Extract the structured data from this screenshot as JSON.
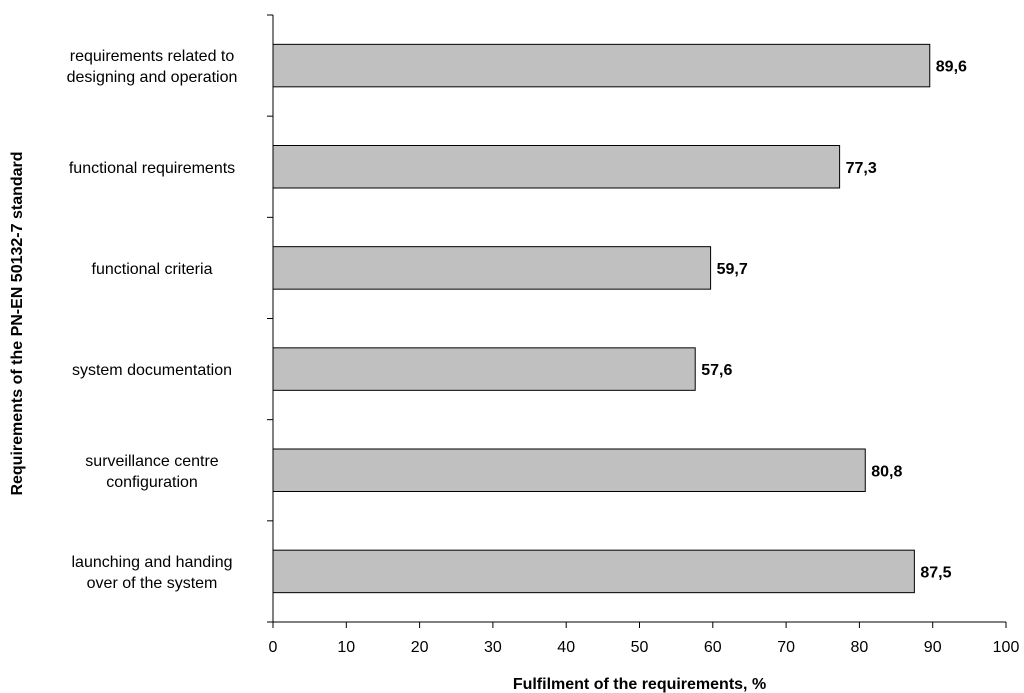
{
  "chart_data": {
    "type": "bar",
    "orientation": "horizontal",
    "xlabel": "Fulfilment of the requirements, %",
    "ylabel": "Requirements of the PN-EN 50132-7 standard",
    "categories": [
      [
        "requirements related to",
        "designing and operation"
      ],
      [
        "functional requirements"
      ],
      [
        "functional criteria"
      ],
      [
        "system documentation"
      ],
      [
        "surveillance centre",
        "configuration"
      ],
      [
        "launching and handing",
        "over of the system"
      ]
    ],
    "values": [
      89.6,
      77.3,
      59.7,
      57.6,
      80.8,
      87.5
    ],
    "value_labels": [
      "89,6",
      "77,3",
      "59,7",
      "57,6",
      "80,8",
      "87,5"
    ],
    "xlim": [
      0,
      100
    ],
    "xticks": [
      0,
      10,
      20,
      30,
      40,
      50,
      60,
      70,
      80,
      90,
      100
    ],
    "grid": false,
    "legend": "none",
    "bar_color": "#c0c0c0"
  }
}
